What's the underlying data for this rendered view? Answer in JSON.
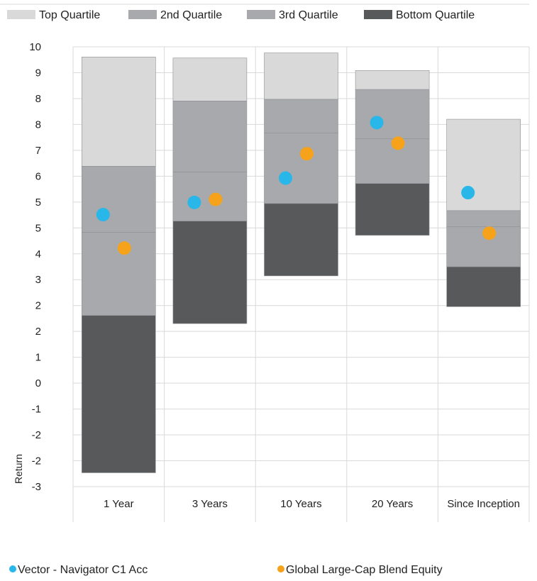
{
  "chart_data": {
    "type": "bar",
    "ylabel": "Return",
    "ylim": [
      -3,
      10
    ],
    "yticks": [
      "-3",
      "-2",
      "-2",
      "-1",
      "0",
      "1",
      "2",
      "2",
      "3",
      "4",
      "5",
      "5",
      "6",
      "7",
      "8",
      "8",
      "9",
      "10"
    ],
    "categories": [
      "1 Year",
      "3 Years",
      "10 Years",
      "20 Years",
      "Since Inception"
    ],
    "quartile_bands": [
      {
        "name": "Bottom Quartile",
        "color": "#58595b",
        "values": [
          [
            -2.59,
            2.06
          ],
          [
            1.82,
            4.85
          ],
          [
            3.23,
            5.37
          ],
          [
            4.43,
            5.96
          ],
          [
            2.32,
            3.5
          ]
        ]
      },
      {
        "name": "3rd Quartile",
        "color": "#a7a9ac",
        "values": [
          [
            2.06,
            4.52
          ],
          [
            4.85,
            6.3
          ],
          [
            5.37,
            7.45
          ],
          [
            5.96,
            7.28
          ],
          [
            3.5,
            4.68
          ]
        ]
      },
      {
        "name": "2nd Quartile",
        "color": "#a7a9ac",
        "values": [
          [
            4.52,
            6.47
          ],
          [
            6.3,
            8.4
          ],
          [
            7.45,
            8.45
          ],
          [
            7.28,
            8.74
          ],
          [
            4.68,
            5.16
          ]
        ]
      },
      {
        "name": "Top Quartile",
        "color": "#d9d9d9",
        "values": [
          [
            6.47,
            9.7
          ],
          [
            8.4,
            9.67
          ],
          [
            8.45,
            9.82
          ],
          [
            8.74,
            9.3
          ],
          [
            5.16,
            7.86
          ]
        ]
      }
    ],
    "series": [
      {
        "name": "Vector - Navigator C1 Acc",
        "color": "#29b6e8",
        "values": [
          5.04,
          5.4,
          6.12,
          7.76,
          5.69
        ]
      },
      {
        "name": "Global Large-Cap Blend Equity",
        "color": "#f7a21b",
        "values": [
          4.05,
          5.49,
          6.84,
          7.15,
          4.49
        ]
      }
    ],
    "legend_top": [
      {
        "label": "Top Quartile",
        "color": "#d9d9d9"
      },
      {
        "label": "2nd Quartile",
        "color": "#a7a9ac"
      },
      {
        "label": "3rd Quartile",
        "color": "#a7a9ac"
      },
      {
        "label": "Bottom Quartile",
        "color": "#58595b"
      }
    ],
    "legend_bottom": [
      {
        "label": "Vector - Navigator C1 Acc",
        "color": "#29b6e8"
      },
      {
        "label": "Global Large-Cap Blend Equity",
        "color": "#f7a21b"
      }
    ],
    "grid": true
  }
}
